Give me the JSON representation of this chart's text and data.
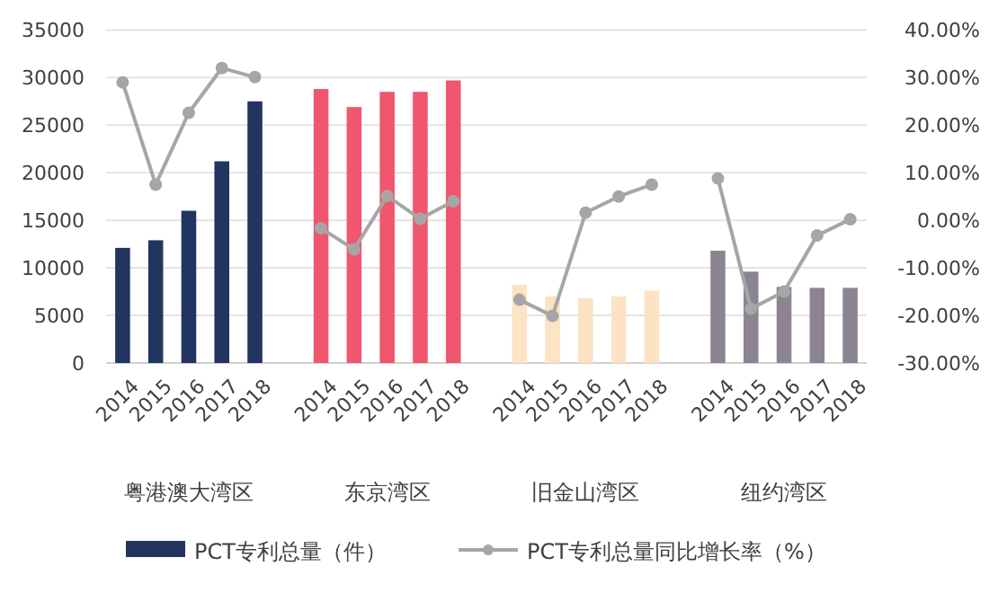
{
  "chart_data": {
    "type": "bar",
    "categories": [
      "2014",
      "2015",
      "2016",
      "2017",
      "2018",
      null,
      "2014",
      "2015",
      "2016",
      "2017",
      "2018",
      null,
      "2014",
      "2015",
      "2016",
      "2017",
      "2018",
      null,
      "2014",
      "2015",
      "2016",
      "2017",
      "2018"
    ],
    "series": [
      {
        "name": "PCT专利总量（件）",
        "color": "#223560",
        "colors": [
          "#223560",
          "#223560",
          "#223560",
          "#223560",
          "#223560",
          null,
          "#f0566e",
          "#f0566e",
          "#f0566e",
          "#f0566e",
          "#f0566e",
          null,
          "#fbe3c4",
          "#fbe3c4",
          "#fbe3c4",
          "#fbe3c4",
          "#fbe3c4",
          null,
          "#8c8490",
          "#8c8490",
          "#8c8490",
          "#8c8490",
          "#8c8490"
        ],
        "values": [
          12100,
          12900,
          16000,
          21200,
          27500,
          null,
          28800,
          26900,
          28500,
          28500,
          29700,
          null,
          8200,
          7000,
          6800,
          7000,
          7600,
          null,
          11800,
          9600,
          8000,
          7900,
          7900
        ]
      },
      {
        "name": "PCT专利总量同比增长率（%）",
        "type": "line",
        "axis": "y2",
        "color": "#a6a6a6",
        "marker": "circle",
        "values": [
          29.0,
          7.5,
          22.6,
          32.0,
          30.1,
          null,
          -1.7,
          -6.1,
          5.1,
          0.3,
          4.0,
          null,
          -16.7,
          -20.1,
          1.6,
          5.0,
          7.5,
          null,
          8.8,
          -18.6,
          -15.0,
          -3.2,
          0.2
        ]
      }
    ],
    "ylim": [
      0,
      35000
    ],
    "yticks": [
      0,
      5000,
      10000,
      15000,
      20000,
      25000,
      30000,
      35000
    ],
    "y2lim": [
      -30,
      40
    ],
    "y2ticks": [
      {
        "value": -30,
        "label": "-30.00%"
      },
      {
        "value": -20,
        "label": "-20.00%"
      },
      {
        "value": -10,
        "label": "-10.00%"
      },
      {
        "value": 0,
        "label": "0.00%"
      },
      {
        "value": 10,
        "label": "10.00%"
      },
      {
        "value": 20,
        "label": "20.00%"
      },
      {
        "value": 30,
        "label": "30.00%"
      },
      {
        "value": 40,
        "label": "40.00%"
      }
    ],
    "annotations": [
      "粤港澳大湾区",
      "东京湾区",
      "旧金山湾区",
      "纽约湾区"
    ],
    "grid": "y",
    "legend": "bottom"
  }
}
